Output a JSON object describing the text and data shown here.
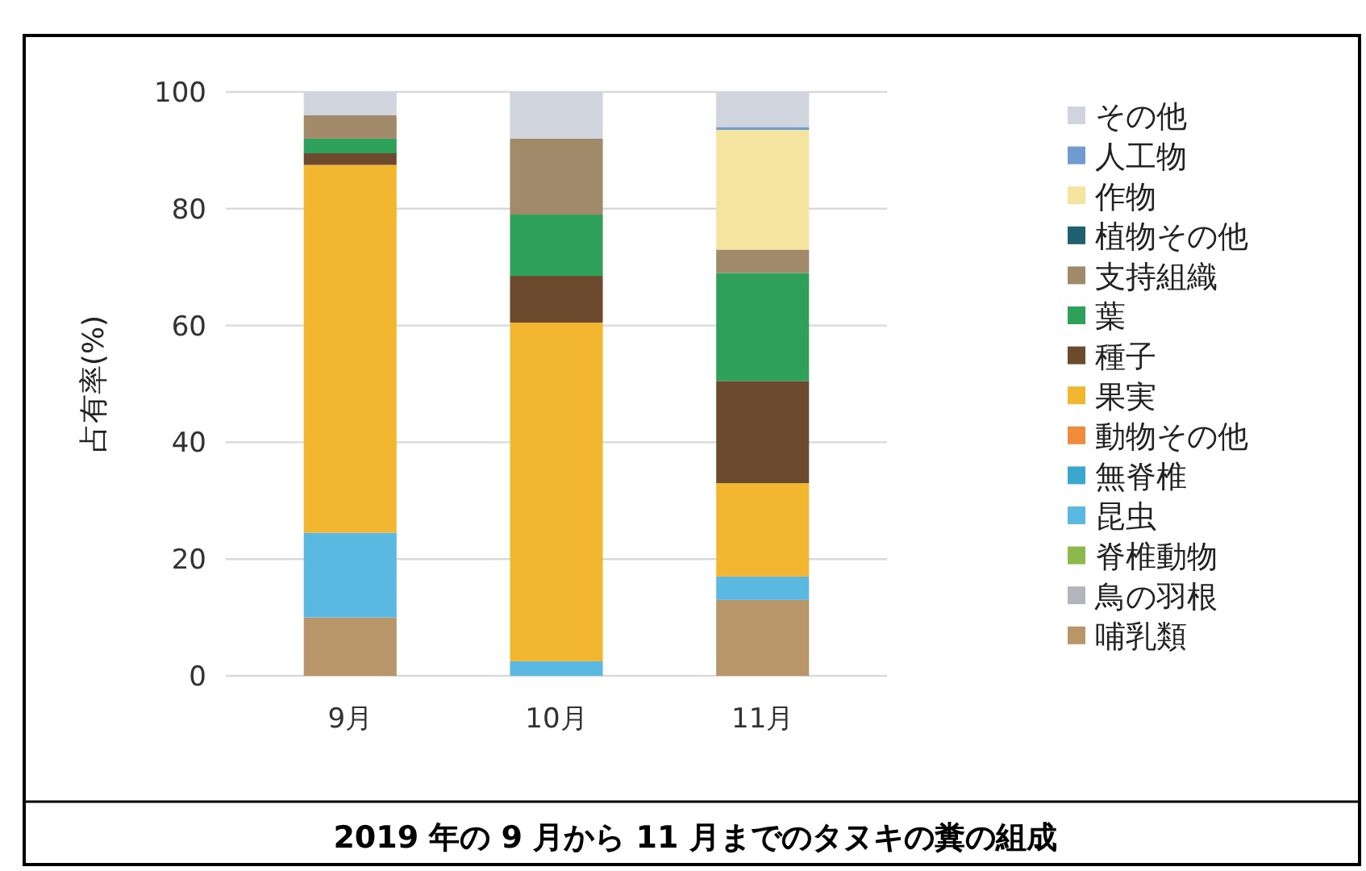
{
  "chart_data": {
    "type": "bar",
    "stacked": true,
    "title": "2019 年の 9 月から 11 月までのタヌキの糞の組成",
    "ylabel": "占有率(%)",
    "categories": [
      "9月",
      "10月",
      "11月"
    ],
    "ylim": [
      0,
      100
    ],
    "yticks": [
      0,
      20,
      40,
      60,
      80,
      100
    ],
    "grid": "y",
    "legend": "right",
    "series": [
      {
        "name": "哺乳類",
        "color": "#b8966a",
        "values": [
          10,
          0,
          13
        ]
      },
      {
        "name": "鳥の羽根",
        "color": "#b4b4bc",
        "values": [
          0,
          0,
          0
        ]
      },
      {
        "name": "脊椎動物",
        "color": "#8db84a",
        "values": [
          0,
          0,
          0
        ]
      },
      {
        "name": "昆虫",
        "color": "#5bb8e0",
        "values": [
          14.5,
          2.5,
          4
        ]
      },
      {
        "name": "無脊椎",
        "color": "#3aa8cc",
        "values": [
          0,
          0,
          0
        ]
      },
      {
        "name": "動物その他",
        "color": "#f08a3c",
        "values": [
          0,
          0,
          0
        ]
      },
      {
        "name": "果実",
        "color": "#f2b630",
        "values": [
          63,
          58,
          16
        ]
      },
      {
        "name": "種子",
        "color": "#6b4a2e",
        "values": [
          2,
          8,
          17.5
        ]
      },
      {
        "name": "葉",
        "color": "#2ea05a",
        "values": [
          2.5,
          10.5,
          18.5
        ]
      },
      {
        "name": "支持組織",
        "color": "#a08a6a",
        "values": [
          4,
          13,
          4
        ]
      },
      {
        "name": "植物その他",
        "color": "#1f5f6e",
        "values": [
          0,
          0,
          0
        ]
      },
      {
        "name": "作物",
        "color": "#f5e3a0",
        "values": [
          0,
          0,
          20.5
        ]
      },
      {
        "name": "人工物",
        "color": "#6f9bd1",
        "values": [
          0,
          0,
          0.5
        ]
      },
      {
        "name": "その他",
        "color": "#d0d4dc",
        "values": [
          4,
          8,
          6
        ]
      }
    ]
  }
}
